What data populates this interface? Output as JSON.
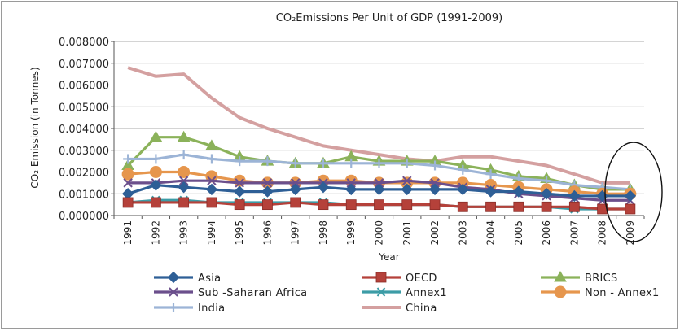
{
  "chart_data": {
    "type": "line",
    "title": "CO₂Emissions Per Unit of GDP (1991-2009)",
    "xlabel": "Year",
    "ylabel": "CO₂ Emission (in Tonnes)",
    "ylim": [
      0,
      0.008
    ],
    "y_ticks": [
      "0.000000",
      "0.001000",
      "0.002000",
      "0.003000",
      "0.004000",
      "0.005000",
      "0.006000",
      "0.007000",
      "0.008000"
    ],
    "categories": [
      "1991",
      "1992",
      "1993",
      "1994",
      "1995",
      "1996",
      "1997",
      "1998",
      "1999",
      "2000",
      "2001",
      "2002",
      "2003",
      "2004",
      "2005",
      "2006",
      "2007",
      "2008",
      "2009"
    ],
    "legend_position": "bottom",
    "series": [
      {
        "name": "China",
        "color": "#d4a0a0",
        "marker": "none",
        "values": [
          0.0068,
          0.0064,
          0.0065,
          0.0054,
          0.0045,
          0.004,
          0.0036,
          0.0032,
          0.003,
          0.0028,
          0.0026,
          0.0025,
          0.0027,
          0.0027,
          0.0025,
          0.0023,
          0.0019,
          0.0015,
          0.0015
        ]
      },
      {
        "name": "BRICS",
        "color": "#8bb25a",
        "marker": "triangle",
        "values": [
          0.0023,
          0.0036,
          0.0036,
          0.0032,
          0.0027,
          0.0025,
          0.0024,
          0.0024,
          0.0027,
          0.0025,
          0.0025,
          0.0025,
          0.0023,
          0.0021,
          0.0018,
          0.0017,
          0.0014,
          0.0012,
          0.0012
        ]
      },
      {
        "name": "India",
        "color": "#9cb4d6",
        "marker": "plus",
        "values": [
          0.0026,
          0.0026,
          0.0028,
          0.0026,
          0.0025,
          0.0025,
          0.0024,
          0.0024,
          0.0024,
          0.0024,
          0.0024,
          0.0023,
          0.0021,
          0.0019,
          0.0017,
          0.0016,
          0.0014,
          0.0013,
          0.0012
        ]
      },
      {
        "name": "Non - Annex1",
        "color": "#e6964d",
        "marker": "circle",
        "values": [
          0.0019,
          0.002,
          0.002,
          0.0018,
          0.0016,
          0.0015,
          0.0015,
          0.0016,
          0.0016,
          0.0015,
          0.0015,
          0.0015,
          0.0015,
          0.0014,
          0.0013,
          0.0012,
          0.0011,
          0.001,
          0.001
        ]
      },
      {
        "name": "Sub -Saharan Africa",
        "color": "#6b4f8c",
        "marker": "x",
        "values": [
          0.0015,
          0.0015,
          0.0016,
          0.0016,
          0.0015,
          0.0015,
          0.0015,
          0.0015,
          0.0015,
          0.0015,
          0.0016,
          0.0015,
          0.0013,
          0.0012,
          0.001,
          0.0009,
          0.0008,
          0.0007,
          0.0007
        ]
      },
      {
        "name": "Asia",
        "color": "#2e5f96",
        "marker": "diamond",
        "values": [
          0.001,
          0.0014,
          0.0013,
          0.0012,
          0.0011,
          0.0011,
          0.0012,
          0.0013,
          0.0012,
          0.0012,
          0.0012,
          0.0012,
          0.0012,
          0.0011,
          0.0011,
          0.001,
          0.0009,
          0.0009,
          0.0009
        ]
      },
      {
        "name": "Annex1",
        "color": "#3c9ca6",
        "marker": "asterisk",
        "values": [
          0.0006,
          0.0007,
          0.0007,
          0.0006,
          0.0006,
          0.0006,
          0.0006,
          0.0006,
          0.0005,
          0.0005,
          0.0005,
          0.0005,
          0.0004,
          0.0004,
          0.0004,
          0.0004,
          0.0003,
          0.0003,
          0.0003
        ]
      },
      {
        "name": "OECD",
        "color": "#b5413a",
        "marker": "square",
        "values": [
          0.0006,
          0.0006,
          0.0006,
          0.0006,
          0.0005,
          0.0005,
          0.0006,
          0.0005,
          0.0005,
          0.0005,
          0.0005,
          0.0005,
          0.0004,
          0.0004,
          0.0004,
          0.0004,
          0.0004,
          0.0003,
          0.0003
        ]
      }
    ],
    "legend_order": [
      "Asia",
      "OECD",
      "BRICS",
      "Sub -Saharan Africa",
      "Annex1",
      "Non - Annex1",
      "India",
      "China"
    ],
    "annotation": {
      "type": "ellipse",
      "around": "2009"
    }
  }
}
